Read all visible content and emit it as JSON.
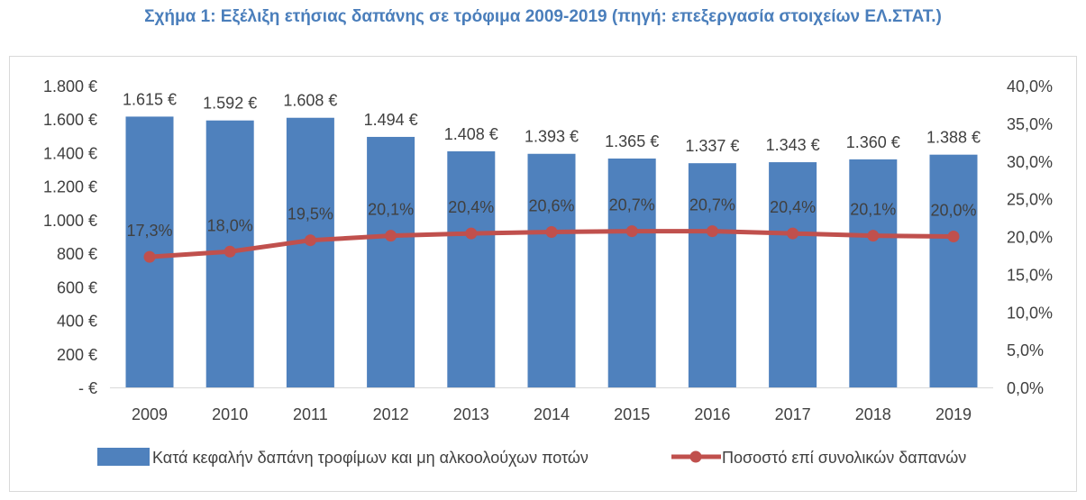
{
  "chart_data": {
    "type": "bar+line",
    "title": "Σχήμα 1: Εξέλιξη ετήσιας δαπάνης σε τρόφιμα 2009-2019 (πηγή: επεξεργασία στοιχείων ΕΛ.ΣΤΑΤ.)",
    "categories": [
      "2009",
      "2010",
      "2011",
      "2012",
      "2013",
      "2014",
      "2015",
      "2016",
      "2017",
      "2018",
      "2019"
    ],
    "series": [
      {
        "name": "Κατά κεφαλήν δαπάνη τροφίμων και μη αλκοολούχων ποτών",
        "type": "bar",
        "axis": "left",
        "values": [
          1615,
          1592,
          1608,
          1494,
          1408,
          1393,
          1365,
          1337,
          1343,
          1360,
          1388
        ],
        "labels": [
          "1.615 €",
          "1.592 €",
          "1.608 €",
          "1.494 €",
          "1.408 €",
          "1.393 €",
          "1.365 €",
          "1.337 €",
          "1.343 €",
          "1.360 €",
          "1.388 €"
        ],
        "color": "#4f81bd"
      },
      {
        "name": "Ποσοστό επί συνολικών δαπανών",
        "type": "line",
        "axis": "right",
        "values": [
          17.3,
          18.0,
          19.5,
          20.1,
          20.4,
          20.6,
          20.7,
          20.7,
          20.4,
          20.1,
          20.0
        ],
        "labels": [
          "17,3%",
          "18,0%",
          "19,5%",
          "20,1%",
          "20,4%",
          "20,6%",
          "20,7%",
          "20,7%",
          "20,4%",
          "20,1%",
          "20,0%"
        ],
        "color": "#c0504d"
      }
    ],
    "ylim_left": [
      0,
      1800
    ],
    "ylim_right": [
      0,
      40
    ],
    "left_ticks": [
      "-  €",
      "200 €",
      "400 €",
      "600 €",
      "800 €",
      "1.000 €",
      "1.200 €",
      "1.400 €",
      "1.600 €",
      "1.800 €"
    ],
    "right_ticks": [
      "0,0%",
      "5,0%",
      "10,0%",
      "15,0%",
      "20,0%",
      "25,0%",
      "30,0%",
      "35,0%",
      "40,0%"
    ],
    "grid": false,
    "legend": "bottom"
  }
}
